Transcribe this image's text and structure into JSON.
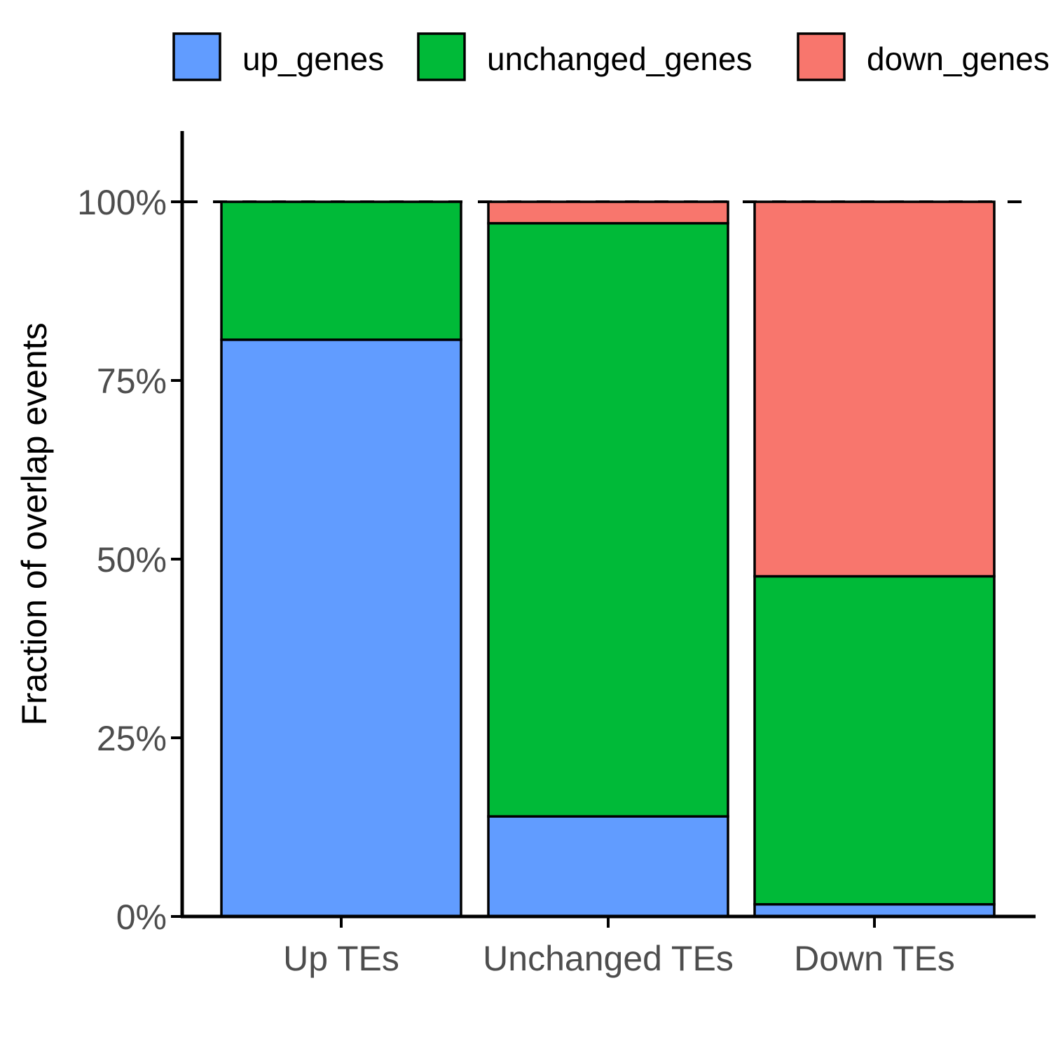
{
  "chart_data": {
    "type": "bar",
    "stacked": true,
    "normalized": true,
    "categories": [
      "Up TEs",
      "Unchanged TEs",
      "Down TEs"
    ],
    "series": [
      {
        "name": "up_genes",
        "color": "#619CFF",
        "values": [
          80.7,
          14.0,
          1.7
        ]
      },
      {
        "name": "unchanged_genes",
        "color": "#00BA38",
        "values": [
          19.3,
          83.0,
          45.9
        ]
      },
      {
        "name": "down_genes",
        "color": "#F8766D",
        "values": [
          0.0,
          3.0,
          52.4
        ]
      }
    ],
    "title": "",
    "xlabel": "",
    "ylabel": "Fraction of overlap events",
    "ylim": [
      0,
      110
    ],
    "yticks": [
      0,
      25,
      50,
      75,
      100
    ],
    "ytick_labels": [
      "0%",
      "25%",
      "50%",
      "75%",
      "100%"
    ],
    "reference_line": {
      "y": 100,
      "style": "dashed"
    },
    "legend": {
      "position": "top",
      "entries": [
        "up_genes",
        "unchanged_genes",
        "down_genes"
      ]
    },
    "grid": false
  }
}
